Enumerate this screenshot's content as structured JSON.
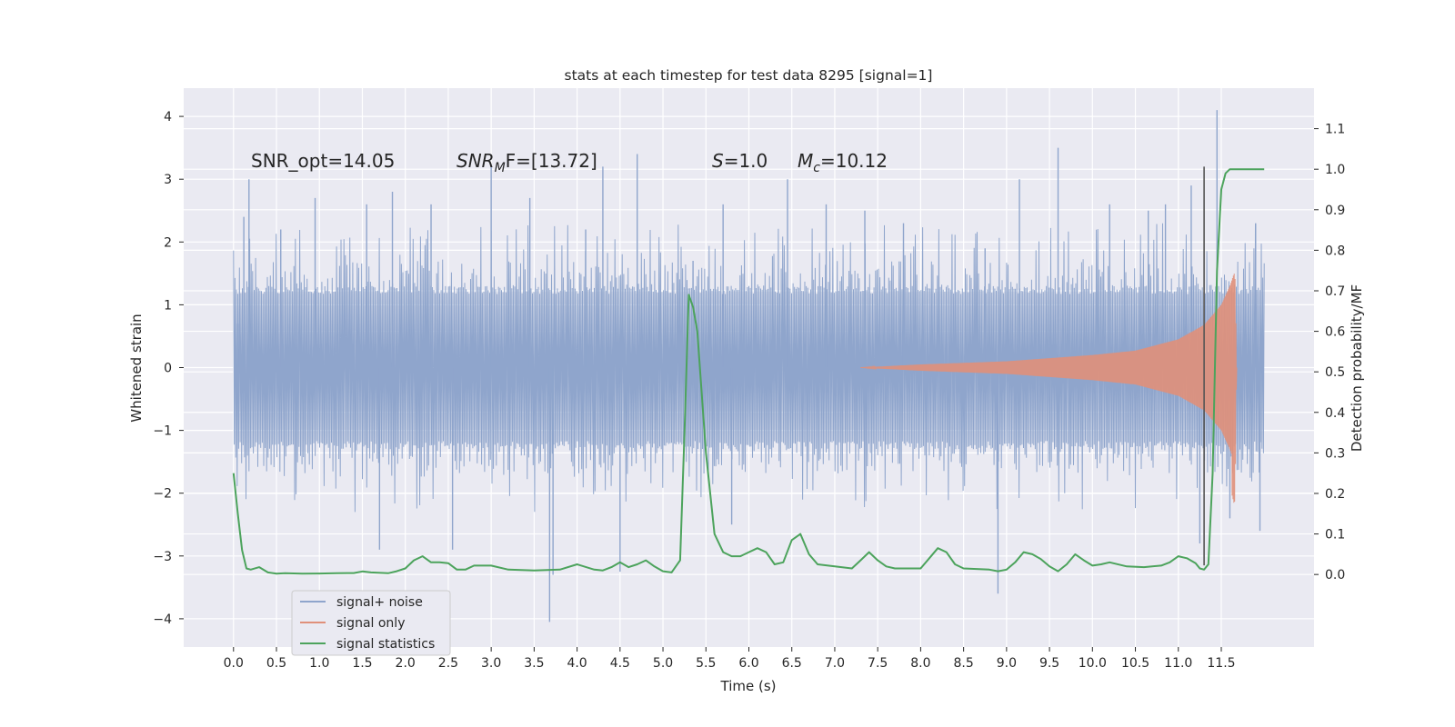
{
  "chart_data": {
    "type": "line",
    "title": "stats at each timestep for test data 8295 [signal=1]",
    "xlabel": "Time (s)",
    "ylabel": "Whitened strain",
    "y2label": "Detection probability/MF",
    "xlim": [
      -0.58,
      12.58
    ],
    "ylim": [
      -4.45,
      4.45
    ],
    "y2lim": [
      -0.179,
      1.2
    ],
    "x_ticks": [
      0.0,
      0.5,
      1.0,
      1.5,
      2.0,
      2.5,
      3.0,
      3.5,
      4.0,
      4.5,
      5.0,
      5.5,
      6.0,
      6.5,
      7.0,
      7.5,
      8.0,
      8.5,
      9.0,
      9.5,
      10.0,
      10.5,
      11.0,
      11.5
    ],
    "x_tick_labels": [
      "0.0",
      "0.5",
      "1.0",
      "1.5",
      "2.0",
      "2.5",
      "3.0",
      "3.5",
      "4.0",
      "4.5",
      "5.0",
      "5.5",
      "6.0",
      "6.5",
      "7.0",
      "7.5",
      "8.0",
      "8.5",
      "9.0",
      "9.5",
      "10.0",
      "10.5",
      "11.0",
      "11.5"
    ],
    "y_ticks": [
      4,
      3,
      2,
      1,
      0,
      -1,
      -2,
      -3,
      -4
    ],
    "y_tick_labels": [
      "4",
      "3",
      "2",
      "1",
      "0",
      "−1",
      "−2",
      "−3",
      "−4"
    ],
    "y2_ticks": [
      1.1,
      1.0,
      0.9,
      0.8,
      0.7,
      0.6,
      0.5,
      0.4,
      0.3,
      0.2,
      0.1,
      0.0
    ],
    "y2_tick_labels": [
      "1.1",
      "1.0",
      "0.9",
      "0.8",
      "0.7",
      "0.6",
      "0.5",
      "0.4",
      "0.3",
      "0.2",
      "0.1",
      "0.0"
    ],
    "grid": true,
    "legend_position": "lower-left",
    "annotations": [
      {
        "text": "SNR_opt=14.05"
      },
      {
        "text": "SNR_MF=[13.72]",
        "base": "SNR",
        "sub": "M",
        "rest": "F=[13.72]"
      },
      {
        "text": "S=1.0",
        "base": "S",
        "rest": "=1.0"
      },
      {
        "text": "M_c=10.12",
        "base": "M",
        "sub": "c",
        "rest": "=10.12"
      }
    ],
    "series": [
      {
        "name": "signal+ noise",
        "color": "#8fa5cc",
        "axis": "left",
        "style": "dense noise",
        "x_range": [
          0.0,
          12.0
        ],
        "band": 1.3,
        "peaks": [
          [
            0.05,
            0.7
          ],
          [
            0.12,
            2.4
          ],
          [
            0.18,
            3.0
          ],
          [
            0.55,
            2.2
          ],
          [
            0.95,
            2.7
          ],
          [
            1.55,
            2.6
          ],
          [
            1.7,
            -2.9
          ],
          [
            1.85,
            2.8
          ],
          [
            2.3,
            2.6
          ],
          [
            2.55,
            -2.9
          ],
          [
            3.0,
            3.2
          ],
          [
            3.45,
            2.7
          ],
          [
            3.68,
            -4.05
          ],
          [
            3.72,
            -3.3
          ],
          [
            4.1,
            2.2
          ],
          [
            4.3,
            3.2
          ],
          [
            4.5,
            -3.25
          ],
          [
            4.7,
            3.4
          ],
          [
            5.35,
            1.7
          ],
          [
            5.7,
            2.6
          ],
          [
            5.8,
            -2.5
          ],
          [
            6.45,
            3.0
          ],
          [
            6.9,
            2.6
          ],
          [
            7.35,
            2.5
          ],
          [
            7.8,
            2.3
          ],
          [
            8.75,
            1.9
          ],
          [
            8.9,
            -3.6
          ],
          [
            9.15,
            3.0
          ],
          [
            9.6,
            3.5
          ],
          [
            10.2,
            2.6
          ],
          [
            10.65,
            2.5
          ],
          [
            10.85,
            2.6
          ],
          [
            11.15,
            2.9
          ],
          [
            11.25,
            -2.8
          ],
          [
            11.45,
            4.1
          ],
          [
            11.6,
            -2.4
          ],
          [
            11.9,
            2.3
          ],
          [
            11.95,
            -2.6
          ]
        ]
      },
      {
        "name": "signal only",
        "color": "#e0907a",
        "axis": "left",
        "style": "chirp",
        "x_range": [
          7.3,
          11.68
        ],
        "amplitude_points": [
          [
            7.3,
            0.0
          ],
          [
            8.0,
            0.05
          ],
          [
            9.0,
            0.1
          ],
          [
            10.0,
            0.2
          ],
          [
            10.5,
            0.27
          ],
          [
            11.0,
            0.45
          ],
          [
            11.3,
            0.68
          ],
          [
            11.5,
            1.0
          ],
          [
            11.6,
            1.3
          ],
          [
            11.65,
            1.5
          ],
          [
            11.66,
            1.45
          ],
          [
            11.68,
            0.0
          ]
        ],
        "min_value": -2.2,
        "max_value": 1.5
      },
      {
        "name": "signal statistics",
        "color": "#4ca35c",
        "axis": "right",
        "x": [
          0.0,
          0.05,
          0.1,
          0.15,
          0.2,
          0.3,
          0.4,
          0.5,
          0.6,
          0.8,
          1.0,
          1.2,
          1.4,
          1.5,
          1.6,
          1.8,
          1.9,
          2.0,
          2.1,
          2.2,
          2.3,
          2.4,
          2.5,
          2.6,
          2.7,
          2.8,
          3.0,
          3.2,
          3.5,
          3.8,
          4.0,
          4.2,
          4.3,
          4.4,
          4.5,
          4.6,
          4.7,
          4.8,
          4.9,
          5.0,
          5.1,
          5.2,
          5.25,
          5.3,
          5.35,
          5.4,
          5.5,
          5.6,
          5.7,
          5.8,
          5.9,
          6.0,
          6.1,
          6.2,
          6.3,
          6.4,
          6.5,
          6.6,
          6.7,
          6.8,
          7.0,
          7.2,
          7.3,
          7.4,
          7.5,
          7.6,
          7.7,
          8.0,
          8.1,
          8.2,
          8.3,
          8.4,
          8.5,
          8.8,
          8.9,
          9.0,
          9.1,
          9.2,
          9.3,
          9.4,
          9.5,
          9.6,
          9.7,
          9.8,
          9.9,
          10.0,
          10.1,
          10.2,
          10.4,
          10.6,
          10.8,
          10.9,
          11.0,
          11.1,
          11.2,
          11.25,
          11.3,
          11.35,
          11.4,
          11.45,
          11.5,
          11.55,
          11.6,
          11.7,
          11.8,
          11.9,
          12.0
        ],
        "values": [
          0.25,
          0.15,
          0.06,
          0.015,
          0.012,
          0.018,
          0.005,
          0.002,
          0.003,
          0.002,
          0.0025,
          0.003,
          0.0035,
          0.0075,
          0.005,
          0.003,
          0.008,
          0.015,
          0.035,
          0.045,
          0.03,
          0.03,
          0.028,
          0.012,
          0.012,
          0.022,
          0.022,
          0.012,
          0.01,
          0.012,
          0.025,
          0.012,
          0.01,
          0.018,
          0.03,
          0.018,
          0.025,
          0.035,
          0.02,
          0.008,
          0.005,
          0.035,
          0.35,
          0.69,
          0.66,
          0.6,
          0.3,
          0.1,
          0.055,
          0.045,
          0.045,
          0.055,
          0.065,
          0.055,
          0.025,
          0.03,
          0.085,
          0.1,
          0.05,
          0.025,
          0.02,
          0.015,
          0.035,
          0.055,
          0.035,
          0.02,
          0.015,
          0.015,
          0.04,
          0.065,
          0.055,
          0.025,
          0.015,
          0.012,
          0.008,
          0.012,
          0.03,
          0.055,
          0.05,
          0.038,
          0.02,
          0.008,
          0.025,
          0.05,
          0.035,
          0.022,
          0.025,
          0.03,
          0.02,
          0.018,
          0.022,
          0.03,
          0.045,
          0.04,
          0.028,
          0.015,
          0.012,
          0.025,
          0.25,
          0.75,
          0.95,
          0.99,
          1.0,
          1.0,
          1.0,
          1.0,
          1.0
        ]
      }
    ],
    "vertical_marker": {
      "x": 11.3,
      "y_range": [
        -3.15,
        3.2
      ],
      "color": "#555555"
    }
  }
}
